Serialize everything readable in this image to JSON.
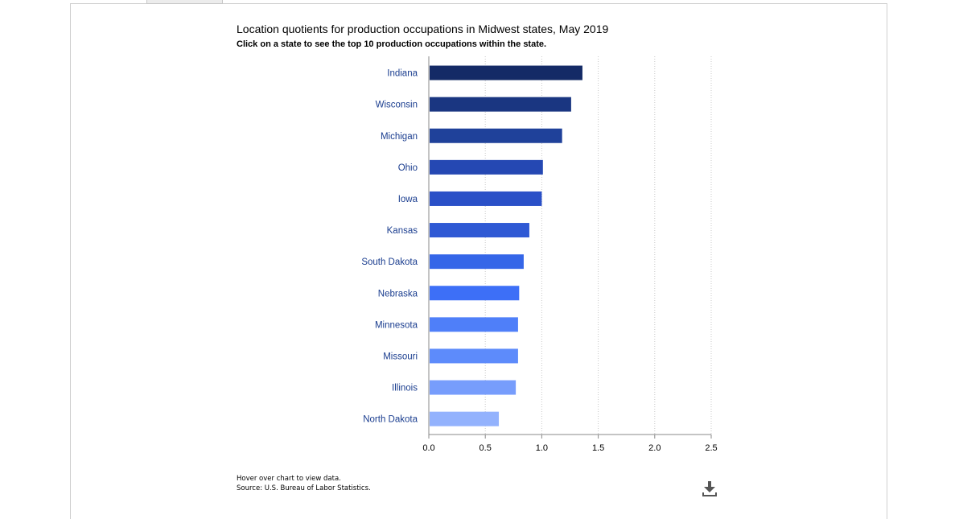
{
  "chart_data": {
    "type": "bar",
    "orientation": "horizontal",
    "title": "Location quotients for production occupations in Midwest states, May 2019",
    "subtitle": "Click on a state to see the top 10 production occupations within the state.",
    "categories": [
      "Indiana",
      "Wisconsin",
      "Michigan",
      "Ohio",
      "Iowa",
      "Kansas",
      "South Dakota",
      "Nebraska",
      "Minnesota",
      "Missouri",
      "Illinois",
      "North Dakota"
    ],
    "values": [
      1.36,
      1.26,
      1.18,
      1.01,
      1.0,
      0.89,
      0.84,
      0.8,
      0.79,
      0.79,
      0.77,
      0.62
    ],
    "bar_colors": [
      "#142a66",
      "#1a3681",
      "#1f419a",
      "#2548b3",
      "#2a50c7",
      "#2f59d4",
      "#3566e8",
      "#3d6ff7",
      "#4f7ff9",
      "#5d8bfb",
      "#779dfc",
      "#93b2fd"
    ],
    "xlim": [
      0,
      2.5
    ],
    "xticks": [
      "0.0",
      "0.5",
      "1.0",
      "1.5",
      "2.0",
      "2.5"
    ],
    "grid": true
  },
  "footnotes": {
    "hover": "Hover over chart to view data.",
    "source": "Source: U.S. Bureau of Labor Statistics."
  },
  "icons": {
    "download": "download-icon"
  }
}
